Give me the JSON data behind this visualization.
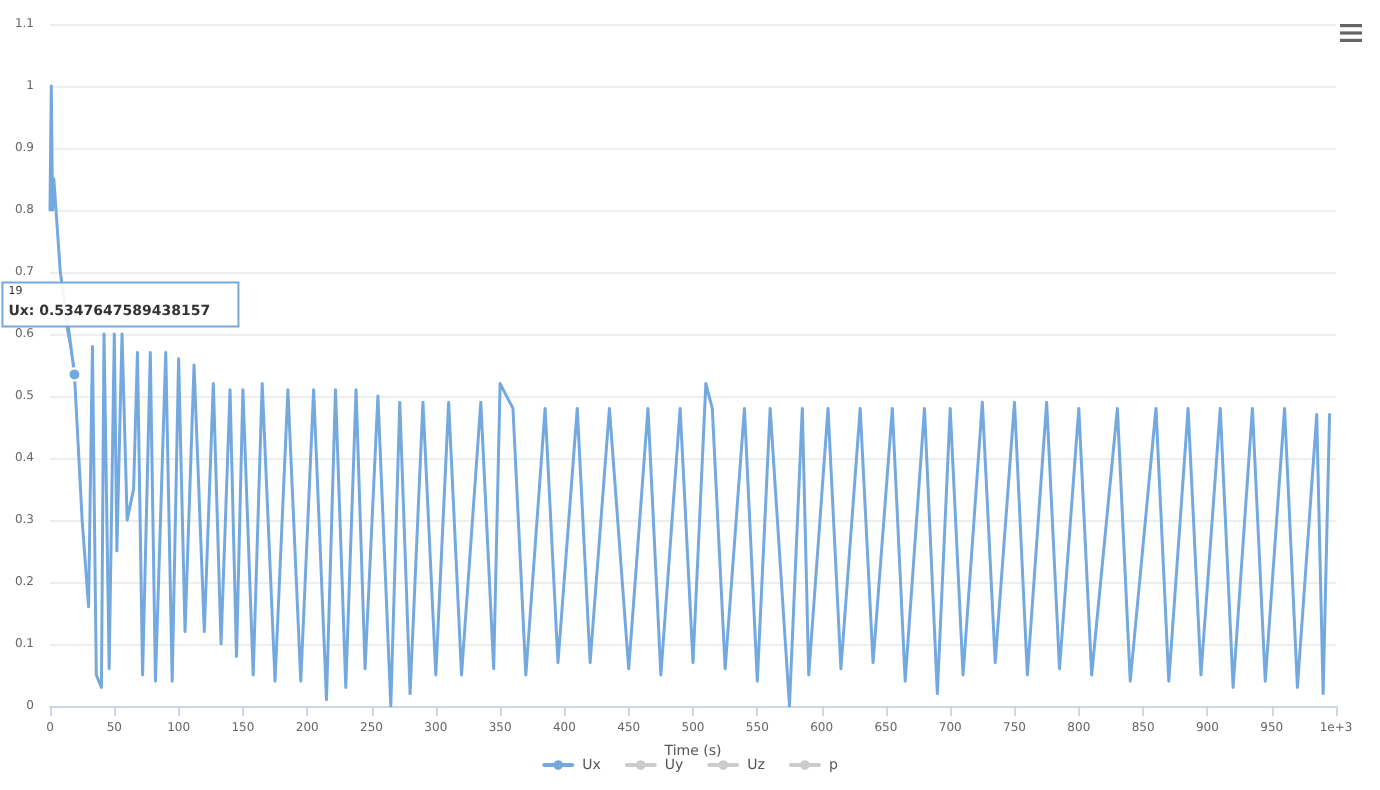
{
  "chart_data": {
    "type": "line",
    "xlabel": "Time (s)",
    "xlim": [
      0,
      1000
    ],
    "xticks": [
      0,
      50,
      100,
      150,
      200,
      250,
      300,
      350,
      400,
      450,
      500,
      550,
      600,
      650,
      700,
      750,
      800,
      850,
      900,
      950,
      {
        "value": 1000,
        "label": "1e+3"
      }
    ],
    "ylim": [
      0,
      1.1
    ],
    "yticks": [
      0,
      0.1,
      0.2,
      0.3,
      0.4,
      0.5,
      0.6,
      0.7,
      0.8,
      0.9,
      1,
      1.1
    ],
    "grid": "y",
    "legend": "bottom",
    "marker": "none",
    "line_style": "solid",
    "annotations": [
      "19",
      {
        "text": "Ux: 0.5347647589438157",
        "x": 19,
        "y": 0.5347647589438157
      }
    ],
    "series": [
      {
        "name": "Ux",
        "color": "#74a9e0",
        "x": [
          0,
          1,
          2,
          3,
          8,
          15,
          19,
          25,
          30,
          33,
          36,
          40,
          42,
          46,
          50,
          52,
          56,
          60,
          65,
          68,
          72,
          78,
          82,
          90,
          95,
          100,
          105,
          112,
          120,
          127,
          133,
          140,
          145,
          150,
          158,
          165,
          175,
          185,
          195,
          205,
          215,
          222,
          230,
          238,
          245,
          255,
          265,
          272,
          280,
          290,
          300,
          310,
          320,
          335,
          345,
          350,
          360,
          370,
          385,
          395,
          410,
          420,
          435,
          450,
          465,
          475,
          490,
          500,
          510,
          515,
          525,
          540,
          550,
          560,
          575,
          585,
          590,
          605,
          615,
          630,
          640,
          655,
          665,
          680,
          690,
          700,
          710,
          725,
          735,
          750,
          760,
          775,
          785,
          800,
          810,
          830,
          840,
          860,
          870,
          885,
          895,
          910,
          920,
          935,
          945,
          960,
          970,
          985,
          990,
          995
        ],
        "values": [
          0.8,
          1.0,
          0.8,
          0.85,
          0.7,
          0.6,
          0.535,
          0.3,
          0.16,
          0.58,
          0.05,
          0.03,
          0.6,
          0.06,
          0.6,
          0.25,
          0.6,
          0.3,
          0.35,
          0.57,
          0.05,
          0.57,
          0.04,
          0.57,
          0.04,
          0.56,
          0.12,
          0.55,
          0.12,
          0.52,
          0.1,
          0.51,
          0.08,
          0.51,
          0.05,
          0.52,
          0.04,
          0.51,
          0.04,
          0.51,
          0.01,
          0.51,
          0.03,
          0.51,
          0.06,
          0.5,
          0.0,
          0.49,
          0.02,
          0.49,
          0.05,
          0.49,
          0.05,
          0.49,
          0.06,
          0.52,
          0.48,
          0.05,
          0.48,
          0.07,
          0.48,
          0.07,
          0.48,
          0.06,
          0.48,
          0.05,
          0.48,
          0.07,
          0.52,
          0.48,
          0.06,
          0.48,
          0.04,
          0.48,
          0.0,
          0.48,
          0.05,
          0.48,
          0.06,
          0.48,
          0.07,
          0.48,
          0.04,
          0.48,
          0.02,
          0.48,
          0.05,
          0.49,
          0.07,
          0.49,
          0.05,
          0.49,
          0.06,
          0.48,
          0.05,
          0.48,
          0.04,
          0.48,
          0.04,
          0.48,
          0.05,
          0.48,
          0.03,
          0.48,
          0.04,
          0.48,
          0.03,
          0.47,
          0.02,
          0.47
        ]
      },
      {
        "name": "Uy",
        "color": "#cccccc"
      },
      {
        "name": "Uz",
        "color": "#cccccc"
      },
      {
        "name": "p",
        "color": "#cccccc"
      }
    ]
  }
}
